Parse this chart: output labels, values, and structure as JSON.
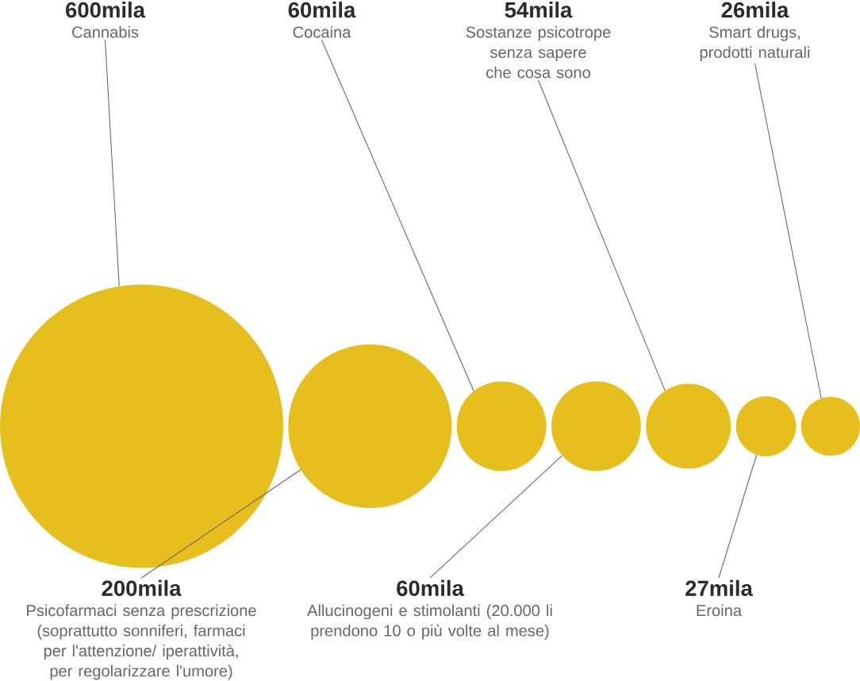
{
  "chart_data": {
    "type": "other",
    "categories": [
      "Cannabis",
      "Psicofarmaci senza prescrizione (soprattutto sonniferi, farmaci per l'attenzione/ iperattività, per regolarizzare l'umore)",
      "Cocaina",
      "Allucinogeni e stimolanti (20.000 li prendono 10 o più volte al mese)",
      "Sostanze psicotrope senza sapere che cosa sono",
      "Eroina",
      "Smart drugs, prodotti naturali"
    ],
    "values": [
      600,
      200,
      60,
      60,
      54,
      27,
      26
    ],
    "value_labels": [
      "600mila",
      "200mila",
      "60mila",
      "60mila",
      "54mila",
      "27mila",
      "26mila"
    ],
    "color": "#e6bf1e"
  }
}
